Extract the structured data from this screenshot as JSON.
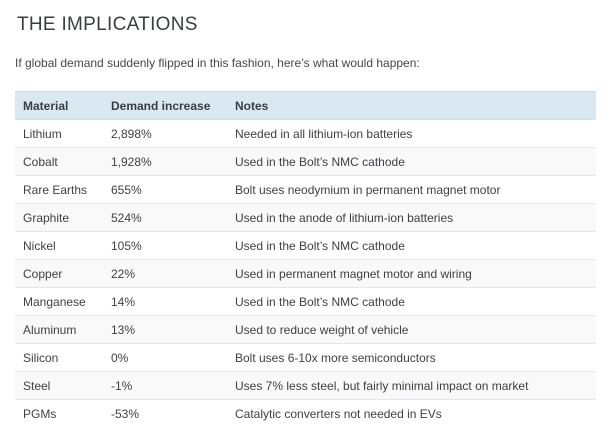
{
  "page": {
    "title": "THE IMPLICATIONS",
    "subtitle": "If global demand suddenly flipped in this fashion, here’s what would happen:"
  },
  "table": {
    "columns": [
      "Material",
      "Demand increase",
      "Notes"
    ],
    "rows": [
      {
        "material": "Lithium",
        "demand_increase": "2,898%",
        "notes": "Needed in all lithium-ion batteries"
      },
      {
        "material": "Cobalt",
        "demand_increase": "1,928%",
        "notes": "Used in the Bolt’s NMC cathode"
      },
      {
        "material": "Rare Earths",
        "demand_increase": "655%",
        "notes": "Bolt uses neodymium in permanent magnet motor"
      },
      {
        "material": "Graphite",
        "demand_increase": "524%",
        "notes": "Used in the anode of lithium-ion batteries"
      },
      {
        "material": "Nickel",
        "demand_increase": "105%",
        "notes": "Used in the Bolt’s NMC cathode"
      },
      {
        "material": "Copper",
        "demand_increase": "22%",
        "notes": "Used in permanent magnet motor and wiring"
      },
      {
        "material": "Manganese",
        "demand_increase": "14%",
        "notes": "Used in the Bolt’s NMC cathode"
      },
      {
        "material": "Aluminum",
        "demand_increase": "13%",
        "notes": "Used to reduce weight of vehicle"
      },
      {
        "material": "Silicon",
        "demand_increase": "0%",
        "notes": "Bolt uses 6-10x more semiconductors"
      },
      {
        "material": "Steel",
        "demand_increase": "-1%",
        "notes": "Uses 7% less steel, but fairly minimal impact on market"
      },
      {
        "material": "PGMs",
        "demand_increase": "-53%",
        "notes": "Catalytic converters not needed in EVs"
      }
    ]
  },
  "colors": {
    "header_bg": "#dae8f2",
    "zebra_stripe": "#f9f9f9",
    "row_border": "#e7e7e7",
    "text": "#3f4045"
  }
}
